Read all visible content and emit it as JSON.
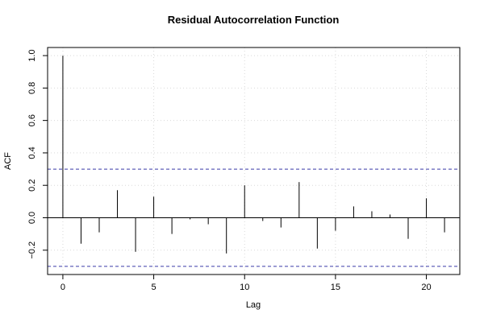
{
  "chart_data": {
    "type": "bar",
    "title": "Residual Autocorrelation Function",
    "xlabel": "Lag",
    "ylabel": "ACF",
    "xlim": [
      -0.84,
      21.84
    ],
    "ylim": [
      -0.35,
      1.05
    ],
    "x_ticks": [
      0,
      5,
      10,
      15,
      20
    ],
    "x_tick_labels": [
      "0",
      "5",
      "10",
      "15",
      "20"
    ],
    "y_ticks": [
      -0.2,
      0.0,
      0.2,
      0.4,
      0.6,
      0.8,
      1.0
    ],
    "y_tick_labels": [
      "−0.2",
      "0.0",
      "0.2",
      "0.4",
      "0.6",
      "0.8",
      "1.0"
    ],
    "grid": true,
    "zero_line": 0,
    "confidence_band": {
      "upper": 0.3,
      "lower": -0.3,
      "color": "#3a3aa8",
      "style": "dashed"
    },
    "series": [
      {
        "lags": [
          0,
          1,
          2,
          3,
          4,
          5,
          6,
          7,
          8,
          9,
          10,
          11,
          12,
          13,
          14,
          15,
          16,
          17,
          18,
          19,
          20,
          21
        ],
        "values": [
          1.0,
          -0.16,
          -0.09,
          0.17,
          -0.21,
          0.13,
          -0.1,
          -0.01,
          -0.04,
          -0.22,
          0.2,
          -0.02,
          -0.06,
          0.22,
          -0.19,
          -0.08,
          0.07,
          0.04,
          0.02,
          -0.13,
          0.12,
          -0.09
        ],
        "color": "#000000"
      }
    ]
  }
}
